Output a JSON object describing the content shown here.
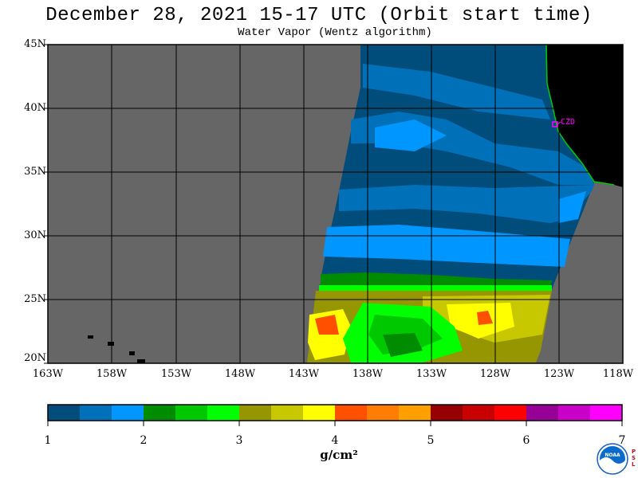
{
  "title": "December 28, 2021  15-17 UTC  (Orbit start time)",
  "subtitle": "Water Vapor (Wentz algorithm)",
  "lat_labels": [
    "45N",
    "40N",
    "35N",
    "30N",
    "25N",
    "20N"
  ],
  "lon_labels": [
    "163W",
    "158W",
    "153W",
    "148W",
    "143W",
    "138W",
    "133W",
    "128W",
    "123W",
    "118W"
  ],
  "station_label": "CZD",
  "colorbar": {
    "labels": [
      "1",
      "2",
      "3",
      "4",
      "5",
      "6",
      "7"
    ],
    "units": "g/cm²",
    "colors": [
      "#004c7a",
      "#0070b8",
      "#0096ff",
      "#008c00",
      "#00c800",
      "#00ff00",
      "#969600",
      "#c8c800",
      "#ffff00",
      "#ff5000",
      "#ff7d00",
      "#ffa000",
      "#960000",
      "#c80000",
      "#ff0000",
      "#960096",
      "#c800c8",
      "#ff00ff"
    ]
  },
  "logo": {
    "label": "NOAA",
    "side_text": "PSL"
  },
  "colors": {
    "no_data": "#666666",
    "land": "#000000",
    "grid": "#000000",
    "station": "#ff00ff"
  }
}
